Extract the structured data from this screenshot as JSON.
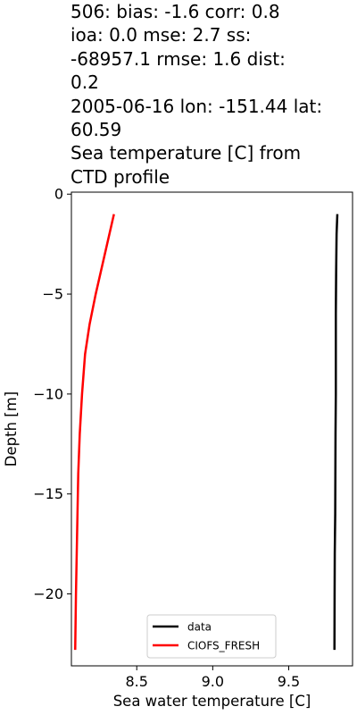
{
  "chart_data": {
    "type": "line",
    "title": "506: bias: -1.6  corr: 0.8\nioa: 0.0  mse: 2.7  ss:\n-68957.1  rmse: 1.6  dist:\n0.2\n2005-06-16 lon: -151.44 lat:\n60.59\nSea temperature [C] from\nCTD profile",
    "xlabel": "Sea water temperature [C]",
    "ylabel": "Depth [m]",
    "xlim": [
      8.07,
      9.92
    ],
    "ylim": [
      -23.6,
      0.1
    ],
    "xticks": [
      8.5,
      9.0,
      9.5
    ],
    "xtick_labels": [
      "8.5",
      "9.0",
      "9.5"
    ],
    "yticks": [
      0,
      -5,
      -10,
      -15,
      -20
    ],
    "ytick_labels": [
      "0",
      "−5",
      "−10",
      "−15",
      "−20"
    ],
    "grid": false,
    "legend_position": "lower-center",
    "series": [
      {
        "name": "data",
        "color": "#000000",
        "points": [
          [
            9.82,
            -1.0
          ],
          [
            9.815,
            -2.0
          ],
          [
            9.812,
            -4.0
          ],
          [
            9.81,
            -6.0
          ],
          [
            9.81,
            -8.0
          ],
          [
            9.81,
            -10.0
          ],
          [
            9.808,
            -12.0
          ],
          [
            9.807,
            -14.0
          ],
          [
            9.806,
            -16.0
          ],
          [
            9.803,
            -18.0
          ],
          [
            9.802,
            -20.0
          ],
          [
            9.801,
            -22.8
          ]
        ]
      },
      {
        "name": "CIOFS_FRESH",
        "color": "#ff0000",
        "points": [
          [
            8.35,
            -1.0
          ],
          [
            8.29,
            -3.0
          ],
          [
            8.23,
            -5.0
          ],
          [
            8.19,
            -6.5
          ],
          [
            8.16,
            -8.0
          ],
          [
            8.14,
            -10.0
          ],
          [
            8.125,
            -12.0
          ],
          [
            8.115,
            -14.0
          ],
          [
            8.11,
            -16.0
          ],
          [
            8.105,
            -18.0
          ],
          [
            8.1,
            -20.0
          ],
          [
            8.095,
            -22.8
          ]
        ]
      }
    ]
  }
}
